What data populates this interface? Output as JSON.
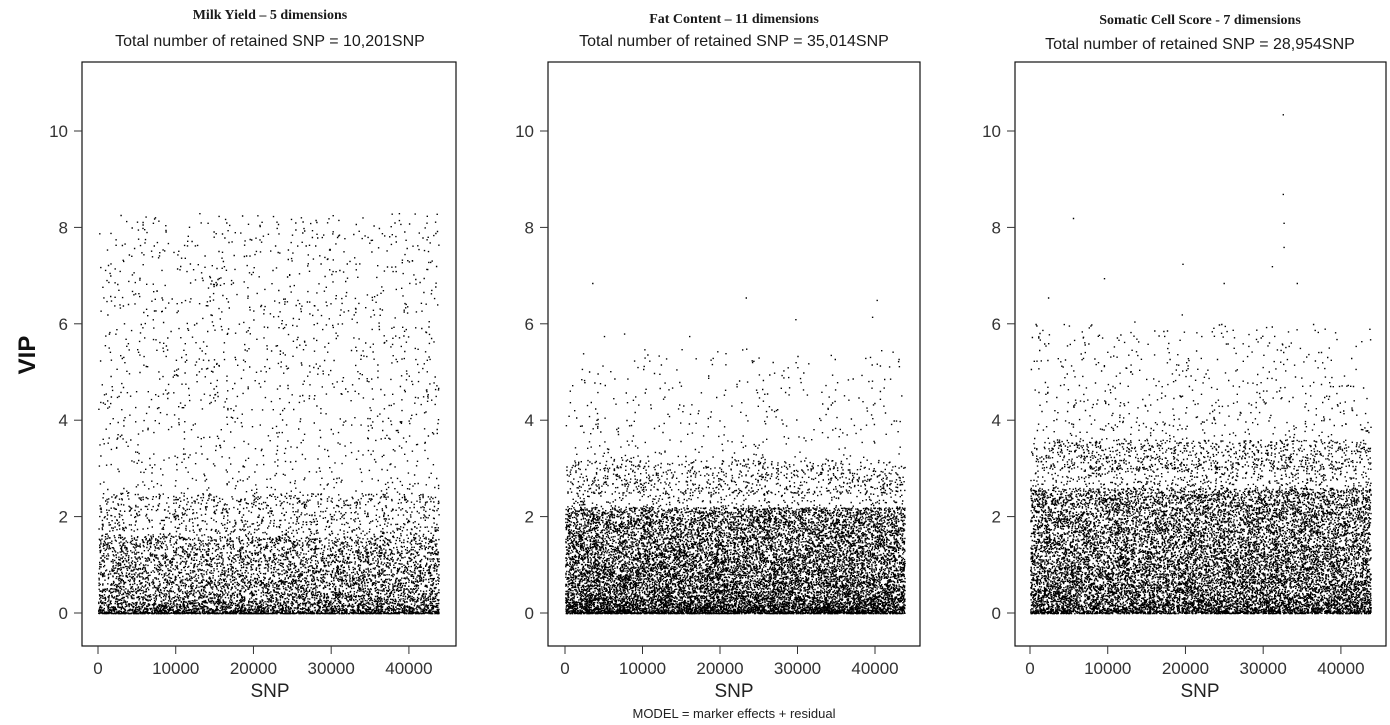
{
  "figure": {
    "ylabel": "VIP",
    "caption": "MODEL = marker effects + residual"
  },
  "chart_data": [
    {
      "type": "scatter",
      "title": "Milk Yield – 5 dimensions",
      "subtitle": "Total number of retained SNP = 10,201SNP",
      "xlabel": "SNP",
      "ylabel": "VIP",
      "xlim": [
        0,
        44000
      ],
      "ylim": [
        0,
        11.5
      ],
      "x_ticks": [
        0,
        10000,
        20000,
        30000,
        40000
      ],
      "y_ticks": [
        0,
        2,
        4,
        6,
        8,
        10
      ],
      "grid": false,
      "point_color": "#000000",
      "n_points": 10201,
      "vip_distribution": "dense below 1.5, sparse uniform scatter up to 8.3",
      "max_vip": 8.35
    },
    {
      "type": "scatter",
      "title": "Fat Content – 11 dimensions",
      "subtitle": "Total number of retained SNP = 35,014SNP",
      "xlabel": "SNP",
      "ylabel": "",
      "xlim": [
        0,
        44000
      ],
      "ylim": [
        0,
        11.5
      ],
      "x_ticks": [
        0,
        10000,
        20000,
        30000,
        40000
      ],
      "y_ticks": [
        0,
        2,
        4,
        6,
        8,
        10
      ],
      "grid": false,
      "point_color": "#000000",
      "n_points": 35014,
      "vip_distribution": "very dense below 2, tapering scatter to about 5",
      "outliers": [
        {
          "x": 3500,
          "y": 6.85
        },
        {
          "x": 23300,
          "y": 6.55
        },
        {
          "x": 40200,
          "y": 6.5
        },
        {
          "x": 29700,
          "y": 6.1
        },
        {
          "x": 39600,
          "y": 6.15
        },
        {
          "x": 7600,
          "y": 5.8
        },
        {
          "x": 16000,
          "y": 5.75
        },
        {
          "x": 5000,
          "y": 5.75
        }
      ]
    },
    {
      "type": "scatter",
      "title": "Somatic Cell Score - 7 dimensions",
      "subtitle": "Total number of retained SNP = 28,954SNP",
      "xlabel": "SNP",
      "ylabel": "",
      "xlim": [
        0,
        44000
      ],
      "ylim": [
        0,
        11.5
      ],
      "x_ticks": [
        0,
        10000,
        20000,
        30000,
        40000
      ],
      "y_ticks": [
        0,
        2,
        4,
        6,
        8,
        10
      ],
      "grid": false,
      "point_color": "#000000",
      "n_points": 28954,
      "vip_distribution": "very dense below 2.5, tapering scatter to about 6",
      "outliers": [
        {
          "x": 32500,
          "y": 10.35
        },
        {
          "x": 32500,
          "y": 8.7
        },
        {
          "x": 32600,
          "y": 8.1
        },
        {
          "x": 32600,
          "y": 7.6
        },
        {
          "x": 5500,
          "y": 8.2
        },
        {
          "x": 19600,
          "y": 7.25
        },
        {
          "x": 31100,
          "y": 7.2
        },
        {
          "x": 9500,
          "y": 6.95
        },
        {
          "x": 34300,
          "y": 6.85
        },
        {
          "x": 24900,
          "y": 6.85
        },
        {
          "x": 2300,
          "y": 6.55
        },
        {
          "x": 700,
          "y": 6.0
        },
        {
          "x": 19500,
          "y": 6.2
        },
        {
          "x": 13400,
          "y": 6.05
        }
      ]
    }
  ]
}
